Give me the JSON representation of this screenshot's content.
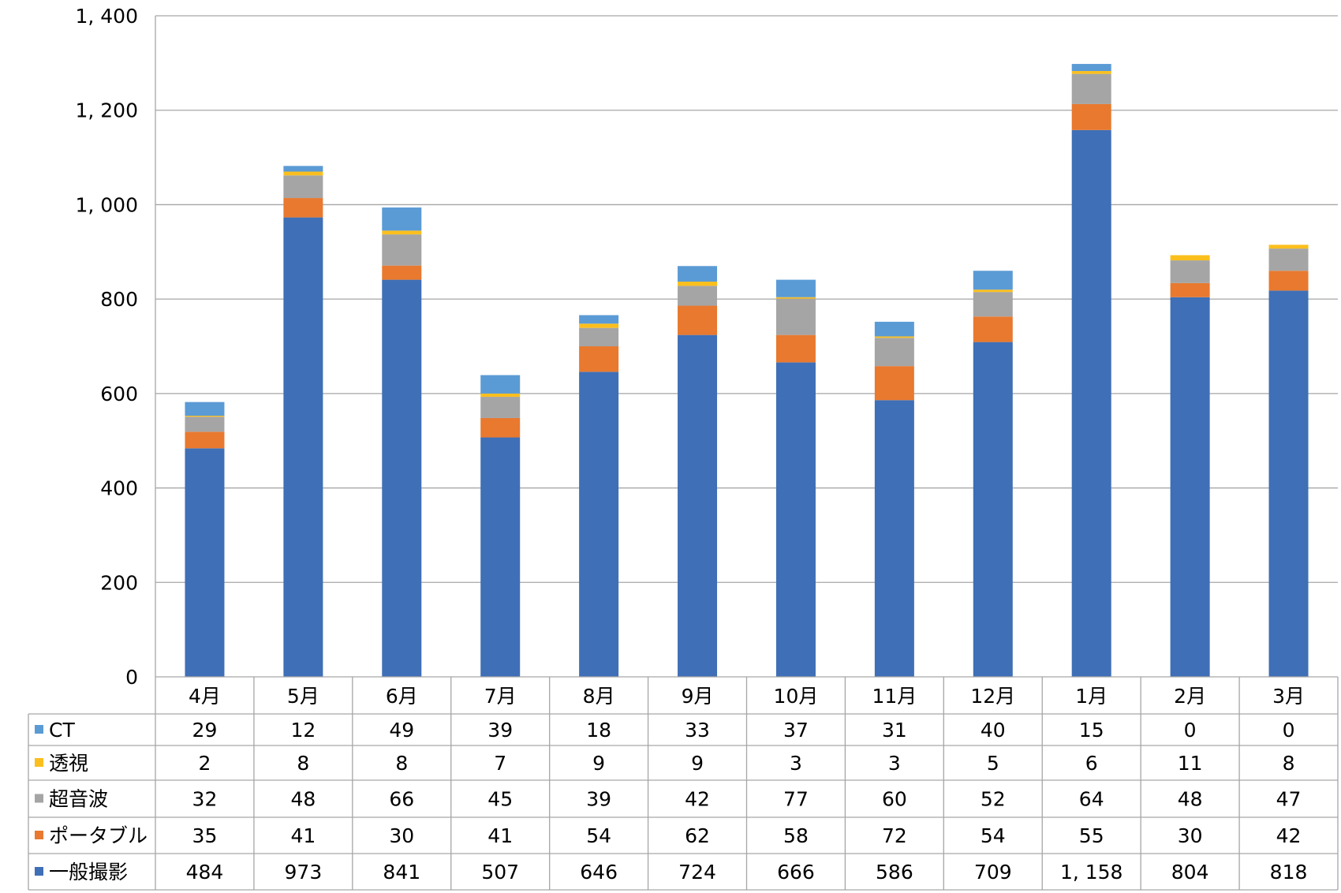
{
  "chart_data": {
    "type": "bar",
    "stacked": true,
    "categories": [
      "4月",
      "5月",
      "6月",
      "7月",
      "8月",
      "9月",
      "10月",
      "11月",
      "12月",
      "1月",
      "2月",
      "3月"
    ],
    "series": [
      {
        "name": "一般撮影",
        "color": "#3f6fb6",
        "values": [
          484,
          973,
          841,
          507,
          646,
          724,
          666,
          586,
          709,
          1158,
          804,
          818
        ],
        "labels": [
          "484",
          "973",
          "841",
          "507",
          "646",
          "724",
          "666",
          "586",
          "709",
          "1, 158",
          "804",
          "818"
        ]
      },
      {
        "name": "ポータブル",
        "color": "#e8792f",
        "values": [
          35,
          41,
          30,
          41,
          54,
          62,
          58,
          72,
          54,
          55,
          30,
          42
        ],
        "labels": [
          "35",
          "41",
          "30",
          "41",
          "54",
          "62",
          "58",
          "72",
          "54",
          "55",
          "30",
          "42"
        ]
      },
      {
        "name": "超音波",
        "color": "#a5a5a5",
        "values": [
          32,
          48,
          66,
          45,
          39,
          42,
          77,
          60,
          52,
          64,
          48,
          47
        ],
        "labels": [
          "32",
          "48",
          "66",
          "45",
          "39",
          "42",
          "77",
          "60",
          "52",
          "64",
          "48",
          "47"
        ]
      },
      {
        "name": "透視",
        "color": "#fbbf1d",
        "values": [
          2,
          8,
          8,
          7,
          9,
          9,
          3,
          3,
          5,
          6,
          11,
          8
        ],
        "labels": [
          "2",
          "8",
          "8",
          "7",
          "9",
          "9",
          "3",
          "3",
          "5",
          "6",
          "11",
          "8"
        ]
      },
      {
        "name": "CT",
        "color": "#5b9bd5",
        "values": [
          29,
          12,
          49,
          39,
          18,
          33,
          37,
          31,
          40,
          15,
          0,
          0
        ],
        "labels": [
          "29",
          "12",
          "49",
          "39",
          "18",
          "33",
          "37",
          "31",
          "40",
          "15",
          "0",
          "0"
        ]
      }
    ],
    "table_row_order": [
      "CT",
      "透視",
      "超音波",
      "ポータブル",
      "一般撮影"
    ],
    "ylim": [
      0,
      1400
    ],
    "yticks": [
      0,
      200,
      400,
      600,
      800,
      1000,
      1200,
      1400
    ],
    "ytick_labels": [
      "0",
      "200",
      "400",
      "600",
      "800",
      "1, 000",
      "1, 200",
      "1, 400"
    ],
    "grid": true,
    "legend": "data-table-left",
    "title": "",
    "xlabel": "",
    "ylabel": ""
  }
}
